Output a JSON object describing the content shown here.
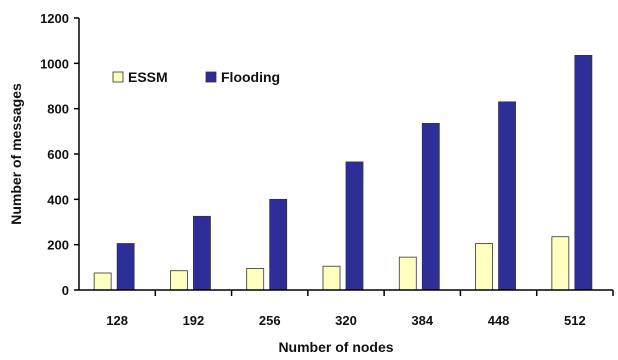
{
  "chart_data": {
    "type": "bar",
    "title": "",
    "xlabel": "Number of nodes",
    "ylabel": "Number of messages",
    "categories": [
      "128",
      "192",
      "256",
      "320",
      "384",
      "448",
      "512"
    ],
    "ylim": [
      0,
      1200
    ],
    "yticks": [
      "0",
      "200",
      "400",
      "600",
      "800",
      "1000",
      "1200"
    ],
    "grid": false,
    "legend_position": "top-left",
    "series": [
      {
        "name": "ESSM",
        "color": "#ffffc0",
        "values": [
          75,
          85,
          95,
          105,
          145,
          205,
          235
        ]
      },
      {
        "name": "Flooding",
        "color": "#2e2e99",
        "values": [
          205,
          325,
          400,
          565,
          735,
          830,
          1035
        ]
      }
    ]
  }
}
